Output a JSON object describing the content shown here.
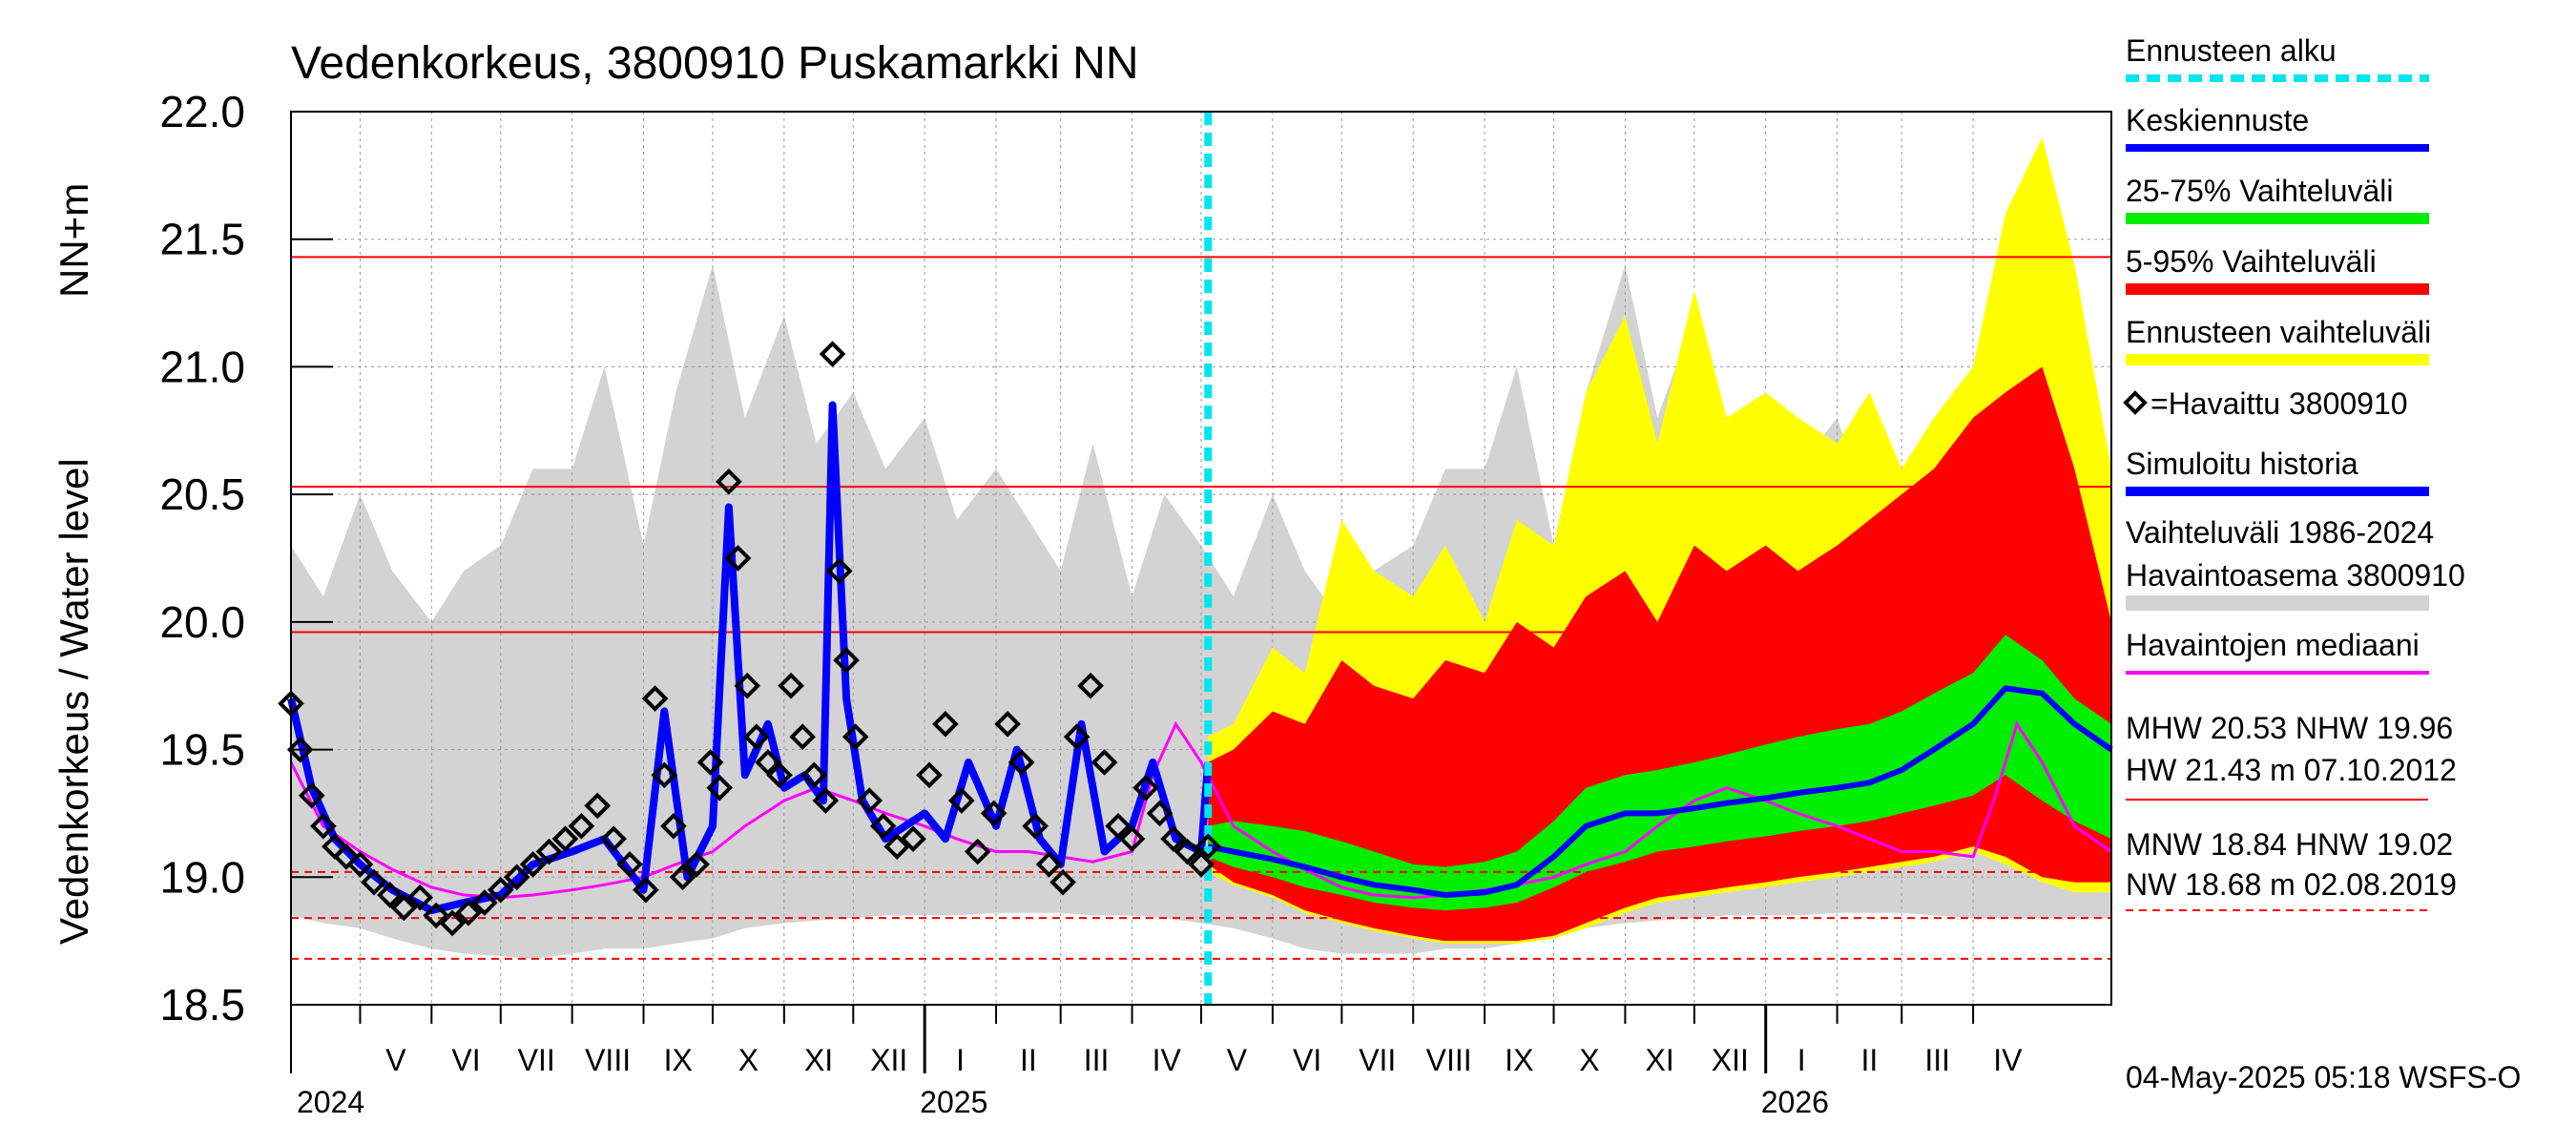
{
  "chart_data": {
    "type": "line",
    "title": "Vedenkorkeus, 3800910 Puskamarkki NN",
    "ylabel_left": "Vedenkorkeus / Water level",
    "ylabel_right": "NN+m",
    "ylim": [
      18.5,
      22.0
    ],
    "yticks": [
      "18.5",
      "19.0",
      "19.5",
      "20.0",
      "20.5",
      "21.0",
      "21.5",
      "22.0"
    ],
    "xlim": [
      "2024-04-01",
      "2026-05-31"
    ],
    "forecast_start": "2025-05-04",
    "months": [
      {
        "label": "V",
        "start": "2024-05-01",
        "end": "2024-06-01"
      },
      {
        "label": "VI",
        "start": "2024-06-01",
        "end": "2024-07-01"
      },
      {
        "label": "VII",
        "start": "2024-07-01",
        "end": "2024-08-01"
      },
      {
        "label": "VIII",
        "start": "2024-08-01",
        "end": "2024-09-01"
      },
      {
        "label": "IX",
        "start": "2024-09-01",
        "end": "2024-10-01"
      },
      {
        "label": "X",
        "start": "2024-10-01",
        "end": "2024-11-01"
      },
      {
        "label": "XI",
        "start": "2024-11-01",
        "end": "2024-12-01"
      },
      {
        "label": "XII",
        "start": "2024-12-01",
        "end": "2025-01-01"
      },
      {
        "label": "I",
        "start": "2025-01-01",
        "end": "2025-02-01"
      },
      {
        "label": "II",
        "start": "2025-02-01",
        "end": "2025-03-01"
      },
      {
        "label": "III",
        "start": "2025-03-01",
        "end": "2025-04-01"
      },
      {
        "label": "IV",
        "start": "2025-04-01",
        "end": "2025-05-01"
      },
      {
        "label": "V",
        "start": "2025-05-01",
        "end": "2025-06-01"
      },
      {
        "label": "VI",
        "start": "2025-06-01",
        "end": "2025-07-01"
      },
      {
        "label": "VII",
        "start": "2025-07-01",
        "end": "2025-08-01"
      },
      {
        "label": "VIII",
        "start": "2025-08-01",
        "end": "2025-09-01"
      },
      {
        "label": "IX",
        "start": "2025-09-01",
        "end": "2025-10-01"
      },
      {
        "label": "X",
        "start": "2025-10-01",
        "end": "2025-11-01"
      },
      {
        "label": "XI",
        "start": "2025-11-01",
        "end": "2025-12-01"
      },
      {
        "label": "XII",
        "start": "2025-12-01",
        "end": "2026-01-01"
      },
      {
        "label": "I",
        "start": "2026-01-01",
        "end": "2026-02-01"
      },
      {
        "label": "II",
        "start": "2026-02-01",
        "end": "2026-03-01"
      },
      {
        "label": "III",
        "start": "2026-03-01",
        "end": "2026-04-01"
      },
      {
        "label": "IV",
        "start": "2026-04-01",
        "end": "2026-05-01"
      }
    ],
    "years": [
      {
        "label": "2024",
        "date": "2024-04-01"
      },
      {
        "label": "2025",
        "date": "2025-01-01"
      },
      {
        "label": "2026",
        "date": "2026-01-01"
      }
    ],
    "reference_lines": [
      {
        "name": "HW",
        "value": 21.43,
        "style": "solid"
      },
      {
        "name": "MHW",
        "value": 20.53,
        "style": "solid"
      },
      {
        "name": "NHW",
        "value": 19.96,
        "style": "solid"
      },
      {
        "name": "HNW",
        "value": 19.02,
        "style": "dashed"
      },
      {
        "name": "MNW",
        "value": 18.84,
        "style": "dashed"
      },
      {
        "name": "NW",
        "value": 18.68,
        "style": "dashed"
      }
    ],
    "colors": {
      "forecast_start": "#00e5ee",
      "median_forecast": "#0000ff",
      "band_25_75": "#00ee00",
      "band_5_95": "#ff0000",
      "forecast_range": "#ffff00",
      "observed": "#000000",
      "simulated": "#0000ff",
      "history_range": "#d3d3d3",
      "obs_median": "#ff00ff",
      "reference": "#ff0000"
    },
    "history_range": {
      "x": [
        "2024-04-01",
        "2024-04-15",
        "2024-05-01",
        "2024-05-15",
        "2024-06-01",
        "2024-06-15",
        "2024-07-01",
        "2024-07-15",
        "2024-08-01",
        "2024-08-15",
        "2024-09-01",
        "2024-09-15",
        "2024-10-01",
        "2024-10-15",
        "2024-11-01",
        "2024-11-15",
        "2024-12-01",
        "2024-12-15",
        "2025-01-01",
        "2025-01-15",
        "2025-02-01",
        "2025-02-15",
        "2025-03-01",
        "2025-03-15",
        "2025-04-01",
        "2025-04-15",
        "2025-05-01",
        "2025-05-15",
        "2025-06-01",
        "2025-06-15",
        "2025-07-01",
        "2025-07-15",
        "2025-08-01",
        "2025-08-15",
        "2025-09-01",
        "2025-09-15",
        "2025-10-01",
        "2025-10-15",
        "2025-11-01",
        "2025-11-15",
        "2025-12-01",
        "2025-12-15",
        "2026-01-01",
        "2026-01-15",
        "2026-02-01",
        "2026-02-15",
        "2026-03-01",
        "2026-03-15",
        "2026-04-01",
        "2026-04-15",
        "2026-05-01",
        "2026-05-15",
        "2026-05-31"
      ],
      "low": [
        18.85,
        18.82,
        18.8,
        18.76,
        18.72,
        18.7,
        18.69,
        18.68,
        18.7,
        18.72,
        18.72,
        18.74,
        18.76,
        18.8,
        18.82,
        18.83,
        18.84,
        18.85,
        18.85,
        18.85,
        18.86,
        18.86,
        18.86,
        18.85,
        18.85,
        18.84,
        18.82,
        18.8,
        18.76,
        18.72,
        18.7,
        18.7,
        18.7,
        18.72,
        18.72,
        18.74,
        18.76,
        18.8,
        18.82,
        18.83,
        18.84,
        18.85,
        18.85,
        18.85,
        18.86,
        18.86,
        18.86,
        18.85,
        18.84,
        18.84,
        18.84,
        18.84,
        18.84
      ],
      "high": [
        20.3,
        20.1,
        20.5,
        20.2,
        20.0,
        20.2,
        20.3,
        20.6,
        20.6,
        21.0,
        20.3,
        20.9,
        21.4,
        20.8,
        21.2,
        20.7,
        20.9,
        20.6,
        20.8,
        20.4,
        20.6,
        20.4,
        20.2,
        20.7,
        20.1,
        20.5,
        20.3,
        20.1,
        20.5,
        20.2,
        20.0,
        20.2,
        20.3,
        20.6,
        20.6,
        21.0,
        20.3,
        20.9,
        21.4,
        20.8,
        21.2,
        20.7,
        20.9,
        20.6,
        20.8,
        20.4,
        20.6,
        20.4,
        20.2,
        20.7,
        20.1,
        20.5,
        20.3
      ]
    },
    "forecast_bands": {
      "x": [
        "2025-05-04",
        "2025-05-15",
        "2025-06-01",
        "2025-06-15",
        "2025-07-01",
        "2025-07-15",
        "2025-08-01",
        "2025-08-15",
        "2025-09-01",
        "2025-09-15",
        "2025-10-01",
        "2025-10-15",
        "2025-11-01",
        "2025-11-15",
        "2025-12-01",
        "2025-12-15",
        "2026-01-01",
        "2026-01-15",
        "2026-02-01",
        "2026-02-15",
        "2026-03-01",
        "2026-03-15",
        "2026-04-01",
        "2026-04-15",
        "2026-05-01",
        "2026-05-15",
        "2026-05-31"
      ],
      "range_low": [
        19.02,
        18.97,
        18.92,
        18.86,
        18.82,
        18.79,
        18.76,
        18.74,
        18.74,
        18.74,
        18.76,
        18.8,
        18.86,
        18.9,
        18.92,
        18.94,
        18.96,
        18.98,
        19.0,
        19.02,
        19.04,
        19.06,
        19.1,
        19.05,
        18.98,
        18.94,
        18.94
      ],
      "range_high": [
        19.55,
        19.6,
        19.9,
        19.8,
        20.4,
        20.2,
        20.1,
        20.3,
        20.0,
        20.4,
        20.3,
        20.9,
        21.2,
        20.7,
        21.3,
        20.8,
        20.9,
        20.8,
        20.7,
        20.9,
        20.6,
        20.8,
        21.0,
        21.6,
        21.9,
        21.4,
        20.6
      ],
      "p5": [
        19.05,
        18.98,
        18.93,
        18.87,
        18.83,
        18.8,
        18.77,
        18.75,
        18.75,
        18.75,
        18.77,
        18.82,
        18.88,
        18.92,
        18.94,
        18.96,
        18.98,
        19.0,
        19.02,
        19.04,
        19.06,
        19.08,
        19.12,
        19.08,
        19.0,
        18.98,
        18.98
      ],
      "p95": [
        19.45,
        19.5,
        19.65,
        19.6,
        19.85,
        19.75,
        19.7,
        19.85,
        19.8,
        20.0,
        19.9,
        20.1,
        20.2,
        20.0,
        20.3,
        20.2,
        20.3,
        20.2,
        20.3,
        20.4,
        20.5,
        20.6,
        20.8,
        20.9,
        21.0,
        20.6,
        20.0
      ],
      "p25": [
        19.08,
        19.04,
        19.0,
        18.96,
        18.93,
        18.9,
        18.88,
        18.87,
        18.88,
        18.9,
        18.96,
        19.02,
        19.06,
        19.1,
        19.12,
        19.14,
        19.16,
        19.18,
        19.2,
        19.22,
        19.25,
        19.28,
        19.32,
        19.4,
        19.3,
        19.22,
        19.15
      ],
      "p75": [
        19.2,
        19.22,
        19.2,
        19.18,
        19.14,
        19.1,
        19.05,
        19.04,
        19.06,
        19.1,
        19.22,
        19.35,
        19.4,
        19.42,
        19.45,
        19.48,
        19.52,
        19.55,
        19.58,
        19.6,
        19.65,
        19.72,
        19.8,
        19.95,
        19.85,
        19.7,
        19.6
      ],
      "median": [
        19.12,
        19.1,
        19.07,
        19.04,
        19.0,
        18.97,
        18.95,
        18.93,
        18.94,
        18.97,
        19.08,
        19.2,
        19.25,
        19.25,
        19.27,
        19.29,
        19.31,
        19.33,
        19.35,
        19.37,
        19.42,
        19.5,
        19.6,
        19.74,
        19.72,
        19.6,
        19.5
      ]
    },
    "simulated": {
      "x": [
        "2024-04-01",
        "2024-04-10",
        "2024-04-20",
        "2024-05-01",
        "2024-05-15",
        "2024-06-01",
        "2024-06-15",
        "2024-07-01",
        "2024-07-15",
        "2024-08-01",
        "2024-08-15",
        "2024-09-01",
        "2024-09-10",
        "2024-09-20",
        "2024-10-01",
        "2024-10-08",
        "2024-10-15",
        "2024-10-25",
        "2024-11-01",
        "2024-11-10",
        "2024-11-18",
        "2024-11-22",
        "2024-11-28",
        "2024-12-05",
        "2024-12-15",
        "2025-01-01",
        "2025-01-10",
        "2025-01-20",
        "2025-02-01",
        "2025-02-10",
        "2025-02-20",
        "2025-03-01",
        "2025-03-10",
        "2025-03-20",
        "2025-04-01",
        "2025-04-10",
        "2025-04-20",
        "2025-05-01",
        "2025-05-04"
      ],
      "y": [
        19.7,
        19.35,
        19.15,
        19.05,
        18.95,
        18.87,
        18.9,
        18.93,
        19.05,
        19.1,
        19.15,
        18.95,
        19.65,
        19.0,
        19.2,
        20.45,
        19.4,
        19.6,
        19.35,
        19.4,
        19.3,
        20.85,
        19.7,
        19.3,
        19.15,
        19.25,
        19.15,
        19.45,
        19.2,
        19.5,
        19.15,
        19.05,
        19.6,
        19.1,
        19.2,
        19.45,
        19.15,
        19.1,
        19.45
      ]
    },
    "observed_median": {
      "x": [
        "2024-04-01",
        "2024-04-15",
        "2024-05-01",
        "2024-05-15",
        "2024-06-01",
        "2024-06-15",
        "2024-07-01",
        "2024-07-15",
        "2024-08-01",
        "2024-08-15",
        "2024-09-01",
        "2024-09-15",
        "2024-10-01",
        "2024-10-15",
        "2024-11-01",
        "2024-11-15",
        "2024-12-01",
        "2024-12-15",
        "2025-01-01",
        "2025-01-15",
        "2025-02-01",
        "2025-02-15",
        "2025-03-01",
        "2025-03-15",
        "2025-04-01",
        "2025-04-10",
        "2025-04-20",
        "2025-05-01",
        "2025-05-15",
        "2025-06-01",
        "2025-06-15",
        "2025-07-01",
        "2025-07-15",
        "2025-08-01",
        "2025-08-15",
        "2025-09-01",
        "2025-09-15",
        "2025-10-01",
        "2025-10-15",
        "2025-11-01",
        "2025-11-15",
        "2025-12-01",
        "2025-12-15",
        "2026-01-01",
        "2026-01-15",
        "2026-02-01",
        "2026-02-15",
        "2026-03-01",
        "2026-03-15",
        "2026-04-01",
        "2026-04-10",
        "2026-04-20",
        "2026-05-01",
        "2026-05-15",
        "2026-05-31"
      ],
      "y": [
        19.45,
        19.2,
        19.1,
        19.03,
        18.96,
        18.93,
        18.92,
        18.93,
        18.95,
        18.97,
        19.0,
        19.05,
        19.1,
        19.2,
        19.3,
        19.35,
        19.3,
        19.25,
        19.2,
        19.15,
        19.1,
        19.1,
        19.08,
        19.06,
        19.1,
        19.4,
        19.6,
        19.45,
        19.2,
        19.1,
        19.03,
        18.96,
        18.93,
        18.92,
        18.93,
        18.95,
        18.97,
        19.0,
        19.05,
        19.1,
        19.2,
        19.3,
        19.35,
        19.3,
        19.25,
        19.2,
        19.15,
        19.1,
        19.1,
        19.08,
        19.3,
        19.6,
        19.45,
        19.2,
        19.1
      ]
    },
    "observed": {
      "x": [
        "2024-04-01",
        "2024-04-05",
        "2024-04-10",
        "2024-04-15",
        "2024-04-20",
        "2024-04-25",
        "2024-05-01",
        "2024-05-07",
        "2024-05-14",
        "2024-05-20",
        "2024-05-27",
        "2024-06-03",
        "2024-06-10",
        "2024-06-17",
        "2024-06-24",
        "2024-07-01",
        "2024-07-08",
        "2024-07-15",
        "2024-07-22",
        "2024-07-29",
        "2024-08-05",
        "2024-08-12",
        "2024-08-19",
        "2024-08-26",
        "2024-09-02",
        "2024-09-06",
        "2024-09-10",
        "2024-09-14",
        "2024-09-18",
        "2024-09-24",
        "2024-09-30",
        "2024-10-04",
        "2024-10-08",
        "2024-10-12",
        "2024-10-16",
        "2024-10-20",
        "2024-10-25",
        "2024-10-30",
        "2024-11-04",
        "2024-11-09",
        "2024-11-14",
        "2024-11-19",
        "2024-11-22",
        "2024-11-25",
        "2024-11-28",
        "2024-12-02",
        "2024-12-08",
        "2024-12-14",
        "2024-12-20",
        "2024-12-27",
        "2025-01-03",
        "2025-01-10",
        "2025-01-17",
        "2025-01-24",
        "2025-01-31",
        "2025-02-06",
        "2025-02-12",
        "2025-02-18",
        "2025-02-24",
        "2025-03-02",
        "2025-03-08",
        "2025-03-14",
        "2025-03-20",
        "2025-03-26",
        "2025-04-01",
        "2025-04-07",
        "2025-04-13",
        "2025-04-19",
        "2025-04-25",
        "2025-05-01",
        "2025-05-04"
      ],
      "y": [
        19.68,
        19.5,
        19.32,
        19.2,
        19.12,
        19.08,
        19.05,
        18.98,
        18.93,
        18.88,
        18.92,
        18.85,
        18.82,
        18.86,
        18.9,
        18.95,
        19.0,
        19.05,
        19.1,
        19.15,
        19.2,
        19.28,
        19.15,
        19.05,
        18.95,
        19.7,
        19.4,
        19.2,
        19.0,
        19.05,
        19.45,
        19.35,
        20.55,
        20.25,
        19.75,
        19.55,
        19.45,
        19.4,
        19.75,
        19.55,
        19.4,
        19.3,
        21.05,
        20.2,
        19.85,
        19.55,
        19.3,
        19.2,
        19.12,
        19.15,
        19.4,
        19.6,
        19.3,
        19.1,
        19.25,
        19.6,
        19.45,
        19.2,
        19.05,
        18.98,
        19.55,
        19.75,
        19.45,
        19.2,
        19.15,
        19.35,
        19.25,
        19.15,
        19.1,
        19.05,
        19.12
      ]
    },
    "legend": [
      {
        "label": "Ennusteen alku",
        "kind": "dashed",
        "color": "#00e5ee"
      },
      {
        "label": "Keskiennuste",
        "kind": "line",
        "color": "#0000ff"
      },
      {
        "label": "25-75% Vaihteluväli",
        "kind": "line",
        "color": "#00ee00"
      },
      {
        "label": "5-95% Vaihteluväli",
        "kind": "line",
        "color": "#ff0000"
      },
      {
        "label": "Ennusteen vaihteluväli",
        "kind": "line",
        "color": "#ffff00"
      },
      {
        "label": "=Havaittu 3800910",
        "kind": "marker",
        "color": "#000000"
      },
      {
        "label": "Simuloitu historia",
        "kind": "line",
        "color": "#0000ff"
      },
      {
        "label": "Vaihteluväli 1986-2024",
        "kind": "text",
        "color": "#d3d3d3"
      },
      {
        "label": " Havaintoasema 3800910",
        "kind": "line",
        "color": "#d3d3d3"
      },
      {
        "label": "Havaintojen mediaani",
        "kind": "line",
        "color": "#ff00ff"
      }
    ],
    "stats": {
      "line1": "MHW  20.53 NHW  19.96",
      "line2": "HW  21.43 m 07.10.2012",
      "line3": "MNW  18.84 HNW  19.02",
      "line4": "NW  18.68 m 02.08.2019"
    },
    "footer": "04-May-2025 05:18 WSFS-O"
  }
}
